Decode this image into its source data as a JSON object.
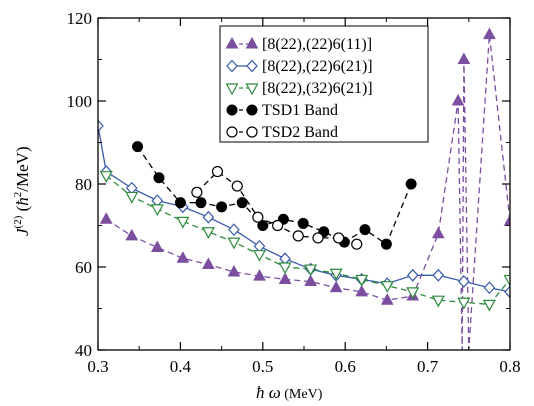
{
  "chart_data": {
    "type": "line",
    "title": "",
    "xlabel": "ħω (MeV)",
    "ylabel": "J(2) (ħ2/MeV)",
    "xlim": [
      0.3,
      0.8
    ],
    "ylim": [
      40,
      120
    ],
    "xticks": [
      "0.3",
      "0.4",
      "0.5",
      "0.6",
      "0.7",
      "0.8"
    ],
    "yticks": [
      "40",
      "60",
      "80",
      "100",
      "120"
    ],
    "grid": false,
    "legend_position": "top-right",
    "series": [
      {
        "name": "[8(22),(22)6(11)]",
        "color": "#7b4ea0",
        "marker": "triangle-up-filled",
        "line": "dashed",
        "x": [
          0.31,
          0.341,
          0.372,
          0.403,
          0.434,
          0.465,
          0.496,
          0.527,
          0.558,
          0.589,
          0.62,
          0.651,
          0.682,
          0.713,
          0.737,
          0.742,
          0.744,
          0.75,
          0.775,
          0.8
        ],
        "y": [
          71.5,
          67.5,
          64.7,
          62.1,
          60.6,
          58.8,
          57.8,
          57.0,
          56.5,
          55.0,
          54.0,
          52.0,
          53.0,
          68.0,
          100.0,
          40.0,
          110.0,
          40.0,
          116.0,
          71.0
        ]
      },
      {
        "name": "[8(22),(22)6(21)]",
        "color": "#3a5ba9",
        "marker": "diamond-open",
        "line": "solid",
        "x": [
          0.3,
          0.31,
          0.341,
          0.372,
          0.403,
          0.434,
          0.465,
          0.496,
          0.527,
          0.558,
          0.589,
          0.62,
          0.651,
          0.682,
          0.713,
          0.744,
          0.775,
          0.8
        ],
        "y": [
          94.0,
          83.0,
          79.0,
          76.0,
          74.5,
          72.0,
          69.0,
          65.0,
          62.0,
          59.5,
          58.0,
          57.0,
          56.0,
          58.0,
          58.0,
          56.5,
          55.0,
          54.0
        ]
      },
      {
        "name": "[8(22),(32)6(21)]",
        "color": "#2e8b3e",
        "marker": "triangle-down-open",
        "line": "dashed",
        "x": [
          0.31,
          0.341,
          0.372,
          0.403,
          0.434,
          0.465,
          0.496,
          0.527,
          0.558,
          0.589,
          0.62,
          0.651,
          0.682,
          0.713,
          0.744,
          0.775,
          0.8
        ],
        "y": [
          82.0,
          77.0,
          74.0,
          71.0,
          68.5,
          66.0,
          63.0,
          60.0,
          59.5,
          58.5,
          57.0,
          55.5,
          54.0,
          52.0,
          51.5,
          51.0,
          57.0
        ]
      },
      {
        "name": "TSD1 Band",
        "color": "#000000",
        "marker": "circle-filled",
        "line": "dashed",
        "x": [
          0.348,
          0.374,
          0.4,
          0.425,
          0.45,
          0.475,
          0.5,
          0.525,
          0.549,
          0.574,
          0.599,
          0.624,
          0.65,
          0.68
        ],
        "y": [
          89.0,
          81.5,
          75.5,
          75.5,
          74.5,
          75.5,
          70.0,
          71.5,
          70.5,
          68.5,
          66.0,
          69.0,
          65.5,
          80.0
        ]
      },
      {
        "name": "TSD2 Band",
        "color": "#000000",
        "marker": "circle-open",
        "line": "dashed",
        "x": [
          0.42,
          0.445,
          0.469,
          0.494,
          0.518,
          0.543,
          0.567,
          0.592,
          0.614
        ],
        "y": [
          78.0,
          83.0,
          79.5,
          72.0,
          70.0,
          67.5,
          67.0,
          67.0,
          65.5
        ]
      }
    ]
  }
}
